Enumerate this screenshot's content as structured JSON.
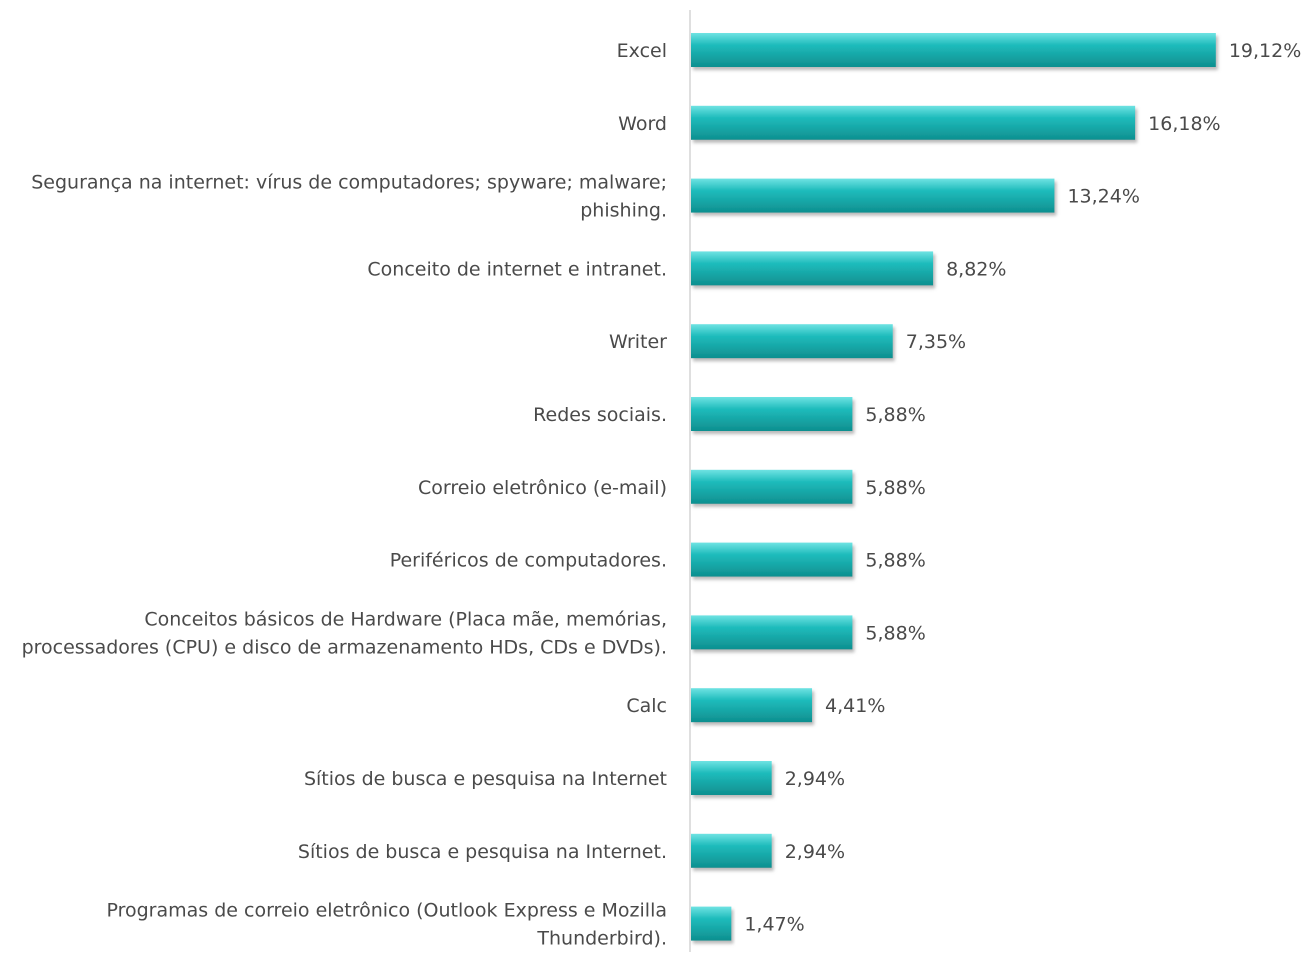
{
  "chart_data": {
    "type": "bar",
    "orientation": "horizontal",
    "categories": [
      "Excel",
      "Word",
      "Segurança na internet: vírus de computadores; spyware; malware; phishing.",
      "Conceito de internet e intranet.",
      "Writer",
      "Redes sociais.",
      "Correio eletrônico (e-mail)",
      "Periféricos de computadores.",
      "Conceitos básicos de Hardware (Placa mãe, memórias, processadores (CPU) e disco de armazenamento HDs, CDs e DVDs).",
      "Calc",
      "Sítios de busca e pesquisa na Internet",
      "Sítios de busca e pesquisa na Internet.",
      "Programas de correio eletrônico (Outlook Express e Mozilla Thunderbird)."
    ],
    "category_lines": [
      [
        "Excel"
      ],
      [
        "Word"
      ],
      [
        "Segurança na internet: vírus de computadores; spyware; malware;",
        "phishing."
      ],
      [
        "Conceito de internet e intranet."
      ],
      [
        "Writer"
      ],
      [
        "Redes sociais."
      ],
      [
        "Correio eletrônico (e-mail)"
      ],
      [
        "Periféricos de computadores."
      ],
      [
        "Conceitos básicos de Hardware (Placa mãe, memórias,",
        "processadores (CPU) e disco de armazenamento HDs, CDs e DVDs)."
      ],
      [
        "Calc"
      ],
      [
        "Sítios de busca e pesquisa na Internet"
      ],
      [
        "Sítios de busca e pesquisa na Internet."
      ],
      [
        "Programas de correio eletrônico (Outlook Express e Mozilla",
        "Thunderbird)."
      ]
    ],
    "values": [
      19.12,
      16.18,
      13.24,
      8.82,
      7.35,
      5.88,
      5.88,
      5.88,
      5.88,
      4.41,
      2.94,
      2.94,
      1.47
    ],
    "value_labels": [
      "19,12%",
      "16,18%",
      "13,24%",
      "8,82%",
      "7,35%",
      "5,88%",
      "5,88%",
      "5,88%",
      "5,88%",
      "4,41%",
      "2,94%",
      "2,94%",
      "1,47%"
    ],
    "title": "",
    "xlabel": "",
    "ylabel": "",
    "xlim": [
      0,
      20
    ],
    "grid": false,
    "legend": "none",
    "colors": {
      "bar": "#1fbcbc",
      "bar_light": "#6fe3e3",
      "bar_dark": "#0e8f8f",
      "bar_shadow": "#9a9a9a",
      "axis": "#bfbfbf",
      "text": "#4a4a4a"
    }
  }
}
